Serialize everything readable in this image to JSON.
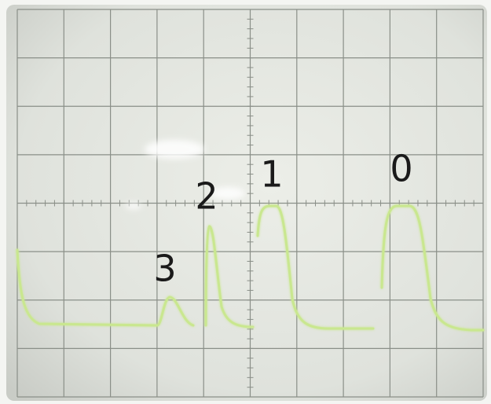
{
  "labels": [
    "3",
    "2",
    "1",
    "0"
  ]
}
